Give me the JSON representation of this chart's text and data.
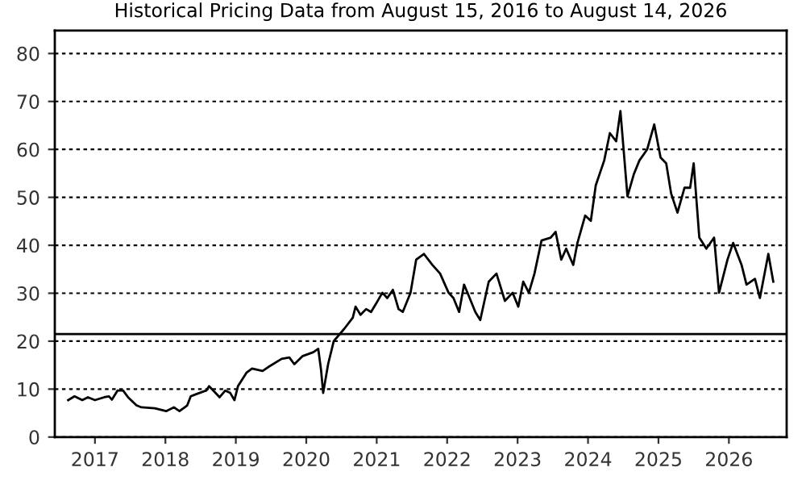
{
  "chart_data": {
    "type": "line",
    "title": "Historical Pricing Data from August 15, 2016 to August 14, 2026",
    "x": [
      2016.62,
      2016.71,
      2016.82,
      2016.9,
      2017.0,
      2017.13,
      2017.2,
      2017.24,
      2017.32,
      2017.4,
      2017.47,
      2017.59,
      2017.66,
      2017.85,
      2018.01,
      2018.12,
      2018.2,
      2018.31,
      2018.36,
      2018.43,
      2018.58,
      2018.62,
      2018.7,
      2018.77,
      2018.85,
      2018.92,
      2018.98,
      2019.03,
      2019.15,
      2019.23,
      2019.38,
      2019.46,
      2019.65,
      2019.76,
      2019.83,
      2019.95,
      2020.1,
      2020.17,
      2020.21,
      2020.24,
      2020.31,
      2020.39,
      2020.54,
      2020.66,
      2020.7,
      2020.77,
      2020.85,
      2020.92,
      2020.99,
      2021.08,
      2021.15,
      2021.23,
      2021.31,
      2021.37,
      2021.48,
      2021.56,
      2021.67,
      2021.79,
      2021.9,
      2022.02,
      2022.09,
      2022.17,
      2022.24,
      2022.32,
      2022.4,
      2022.47,
      2022.59,
      2022.7,
      2022.82,
      2022.93,
      2023.01,
      2023.08,
      2023.16,
      2023.24,
      2023.34,
      2023.47,
      2023.54,
      2023.62,
      2023.69,
      2023.79,
      2023.85,
      2023.96,
      2024.04,
      2024.11,
      2024.23,
      2024.31,
      2024.4,
      2024.46,
      2024.56,
      2024.65,
      2024.73,
      2024.84,
      2024.94,
      2025.03,
      2025.11,
      2025.18,
      2025.27,
      2025.37,
      2025.45,
      2025.5,
      2025.58,
      2025.68,
      2025.79,
      2025.86,
      2025.98,
      2026.06,
      2026.18,
      2026.25,
      2026.37,
      2026.44,
      2026.56,
      2026.63
    ],
    "series": [
      {
        "color": "#000000",
        "values": [
          7.7,
          8.5,
          7.7,
          8.3,
          7.7,
          8.3,
          8.5,
          7.8,
          9.7,
          9.7,
          8.3,
          6.6,
          6.2,
          6.0,
          5.4,
          6.2,
          5.4,
          6.6,
          8.5,
          8.9,
          9.7,
          10.6,
          9.4,
          8.3,
          9.7,
          9.2,
          7.7,
          10.6,
          13.4,
          14.3,
          13.8,
          14.6,
          16.3,
          16.6,
          15.2,
          16.9,
          17.7,
          18.4,
          14.0,
          9.2,
          15.2,
          20.0,
          22.6,
          24.9,
          27.2,
          25.5,
          26.7,
          26.1,
          27.8,
          30.1,
          29.0,
          30.7,
          26.7,
          26.1,
          30.1,
          37.0,
          38.2,
          35.9,
          34.1,
          30.1,
          29.0,
          26.1,
          31.8,
          29.0,
          26.1,
          24.4,
          32.4,
          34.1,
          28.4,
          30.1,
          27.2,
          32.4,
          30.1,
          34.1,
          41.0,
          41.6,
          42.8,
          37.0,
          39.3,
          35.9,
          40.5,
          46.2,
          45.1,
          52.5,
          57.7,
          63.4,
          61.7,
          68.0,
          50.2,
          54.8,
          57.7,
          60.0,
          65.2,
          58.3,
          57.1,
          50.8,
          46.8,
          52.0,
          52.0,
          57.1,
          41.6,
          39.3,
          41.6,
          30.1,
          37.0,
          40.5,
          35.9,
          31.8,
          33.0,
          29.0,
          38.2,
          32.4
        ]
      }
    ],
    "xlim": [
      2016.43,
      2026.82
    ],
    "xticks": [
      2017,
      2018,
      2019,
      2020,
      2021,
      2022,
      2023,
      2024,
      2025,
      2026
    ],
    "ylim": [
      0,
      84.8
    ],
    "yticks": [
      0,
      10,
      20,
      30,
      40,
      50,
      60,
      70,
      80
    ],
    "grid": "y",
    "line_style": "solid",
    "marker": "none",
    "ref_lines": [
      {
        "axis": "y",
        "value": 21.5,
        "color": "#000000",
        "line_style": "solid"
      }
    ]
  }
}
